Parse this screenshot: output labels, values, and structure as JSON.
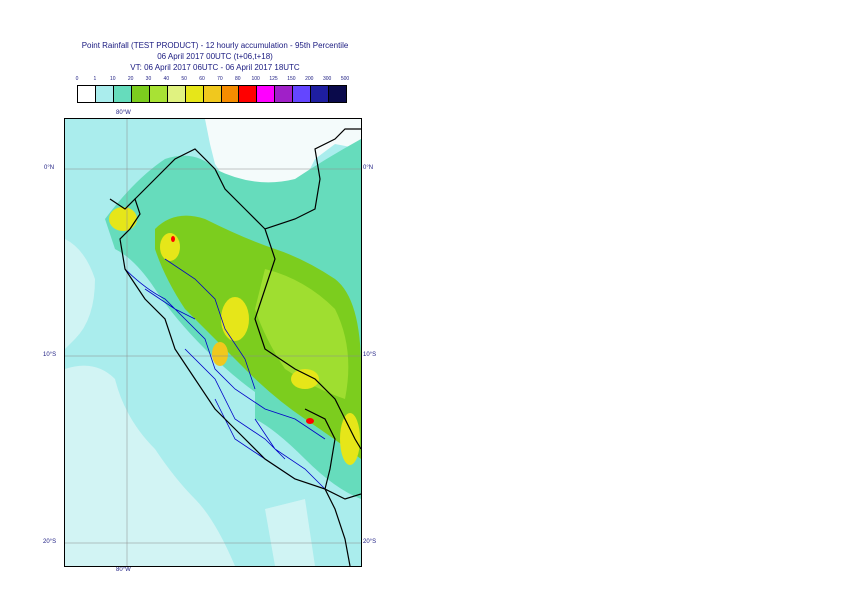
{
  "title": {
    "line1": "Point Rainfall (TEST PRODUCT) - 12 hourly accumulation - 95th Percentile",
    "line2": "06 April 2017 00UTC (t+06,t+18)",
    "line3": "VT: 06 April 2017 06UTC - 06 April 2017 18UTC"
  },
  "legend": {
    "thresholds": [
      "0",
      "1",
      "10",
      "20",
      "30",
      "40",
      "50",
      "60",
      "70",
      "80",
      "100",
      "125",
      "150",
      "200",
      "300",
      "500"
    ],
    "colors": [
      "#ffffff",
      "#aaeded",
      "#66dcbc",
      "#7ccd1e",
      "#a8e234",
      "#e0f280",
      "#e6e619",
      "#f0c81e",
      "#f58c00",
      "#ff0000",
      "#ff00ff",
      "#a020c8",
      "#6446ff",
      "#1e1ea0",
      "#0a0a4b"
    ]
  },
  "axes": {
    "top_lon": "80°W",
    "bottom_lon": "80°W",
    "lat_labels": [
      "0°N",
      "10°S",
      "20°S"
    ]
  },
  "colors": {
    "sea_light": "#aaeded",
    "sea_pale": "#dff6f6",
    "land_none": "#f4fbfb",
    "teal": "#66dcbc",
    "green": "#7ccd1e",
    "lightgreen": "#a8e234",
    "yellow": "#e6e619",
    "orange": "#f0c81e",
    "red": "#ff0000",
    "border_national": "#000000",
    "border_regional": "#0000c8",
    "grid": "#8c8c8c",
    "label": "#1a1a80"
  }
}
